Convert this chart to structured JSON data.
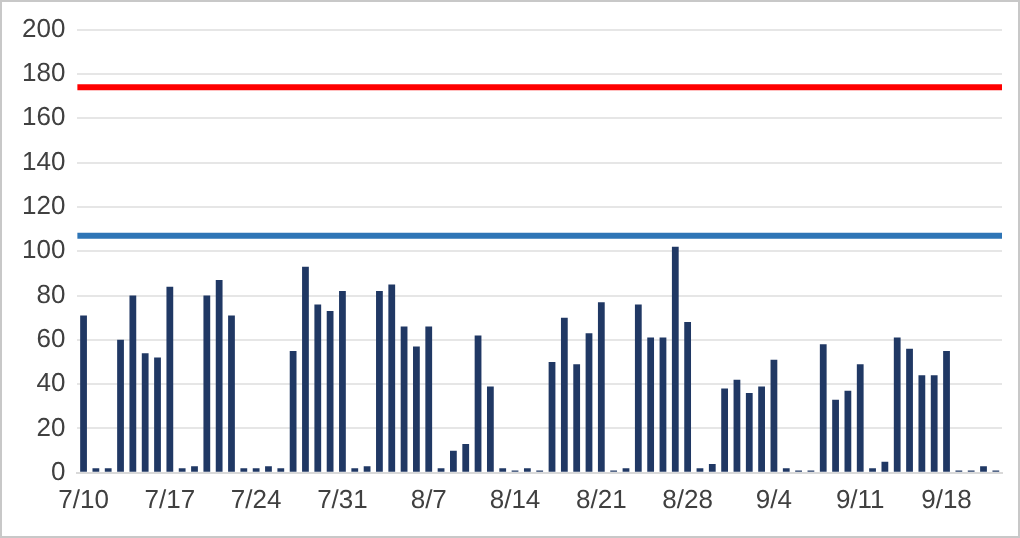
{
  "chart_data": {
    "type": "bar",
    "categories": [
      "7/10",
      null,
      null,
      null,
      null,
      null,
      null,
      "7/17",
      null,
      null,
      null,
      null,
      null,
      null,
      "7/24",
      null,
      null,
      null,
      null,
      null,
      null,
      "7/31",
      null,
      null,
      null,
      null,
      null,
      null,
      "8/7",
      null,
      null,
      null,
      null,
      null,
      null,
      "8/14",
      null,
      null,
      null,
      null,
      null,
      null,
      "8/21",
      null,
      null,
      null,
      null,
      null,
      null,
      "8/28",
      null,
      null,
      null,
      null,
      null,
      null,
      "9/4",
      null,
      null,
      null,
      null,
      null,
      null,
      "9/11",
      null,
      null,
      null,
      null,
      null,
      null,
      "9/18",
      null,
      null,
      null,
      null
    ],
    "values": [
      71,
      2,
      2,
      60,
      80,
      54,
      52,
      84,
      2,
      3,
      80,
      87,
      71,
      2,
      2,
      3,
      2,
      55,
      93,
      76,
      73,
      82,
      2,
      3,
      82,
      85,
      66,
      57,
      66,
      2,
      10,
      13,
      62,
      39,
      2,
      1,
      2,
      1,
      50,
      70,
      49,
      63,
      77,
      1,
      2,
      76,
      61,
      61,
      102,
      68,
      2,
      4,
      38,
      42,
      36,
      39,
      51,
      2,
      1,
      1,
      58,
      33,
      37,
      49,
      2,
      5,
      61,
      56,
      44,
      44,
      55,
      1,
      1,
      3,
      1
    ],
    "color": "#203864",
    "ylim": [
      0,
      200
    ],
    "yticks": [
      0,
      20,
      40,
      60,
      80,
      100,
      120,
      140,
      160,
      180,
      200
    ],
    "grid": "y",
    "legend": false,
    "ref_lines": [
      {
        "axis": "y",
        "value": 174,
        "color": "#ff0000"
      },
      {
        "axis": "y",
        "value": 107,
        "color": "#2e75b6"
      }
    ]
  }
}
